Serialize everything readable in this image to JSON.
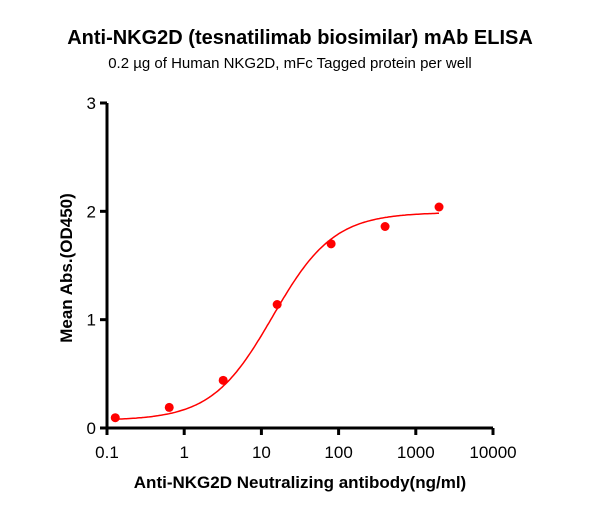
{
  "chart_data": {
    "type": "scatter",
    "title": "Anti-NKG2D (tesnatilimab biosimilar) mAb ELISA",
    "subtitle": "0.2 µg of Human NKG2D, mFc Tagged protein per well",
    "xlabel": "Anti-NKG2D Neutralizing antibody(ng/ml)",
    "ylabel": "Mean Abs.(OD450)",
    "x_scale": "log",
    "xlim": [
      0.1,
      10000
    ],
    "ylim": [
      0,
      3
    ],
    "x_ticks": [
      "0.1",
      "1",
      "10",
      "100",
      "1000",
      "10000"
    ],
    "y_ticks": [
      "0",
      "1",
      "2",
      "3"
    ],
    "grid": false,
    "color": "#ff0000",
    "fit": "sigmoidal curve",
    "x": [
      0.128,
      0.64,
      3.2,
      16,
      80,
      400,
      2000
    ],
    "y": [
      0.095,
      0.19,
      0.44,
      1.14,
      1.7,
      1.86,
      2.04
    ]
  }
}
